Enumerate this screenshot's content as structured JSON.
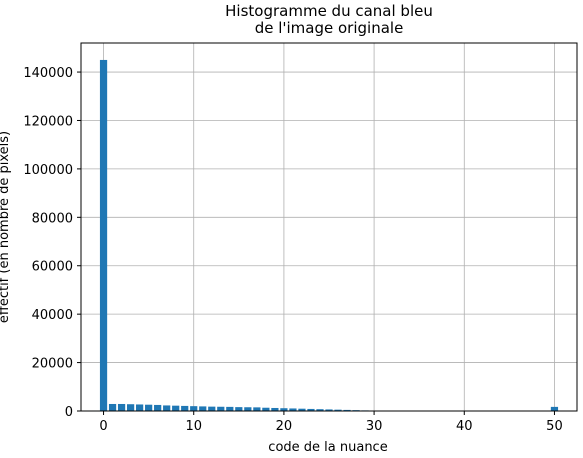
{
  "chart_data": {
    "type": "bar",
    "title_lines": [
      "Histogramme du canal bleu",
      "de l'image originale"
    ],
    "xlabel": "code de la nuance",
    "ylabel": "effectif (en nombre de pixels)",
    "xlim": [
      -2.5,
      52.5
    ],
    "ylim": [
      0,
      152000
    ],
    "xticks": [
      0,
      10,
      20,
      30,
      40,
      50
    ],
    "yticks": [
      0,
      20000,
      40000,
      60000,
      80000,
      100000,
      120000,
      140000
    ],
    "grid": true,
    "bar_color": "#1f77b4",
    "x": [
      0,
      1,
      2,
      3,
      4,
      5,
      6,
      7,
      8,
      9,
      10,
      11,
      12,
      13,
      14,
      15,
      16,
      17,
      18,
      19,
      20,
      21,
      22,
      23,
      24,
      25,
      26,
      27,
      28,
      29,
      30,
      31,
      32,
      33,
      34,
      35,
      36,
      37,
      38,
      39,
      40,
      41,
      42,
      43,
      44,
      45,
      46,
      47,
      48,
      49,
      50
    ],
    "values": [
      145000,
      2900,
      2900,
      2800,
      2700,
      2600,
      2500,
      2300,
      2200,
      2100,
      2000,
      1900,
      1800,
      1750,
      1700,
      1600,
      1550,
      1500,
      1350,
      1250,
      1150,
      1050,
      950,
      850,
      750,
      650,
      550,
      450,
      350,
      250,
      150,
      0,
      0,
      0,
      0,
      0,
      0,
      0,
      0,
      0,
      0,
      0,
      0,
      0,
      0,
      0,
      0,
      0,
      0,
      0,
      1700
    ]
  }
}
